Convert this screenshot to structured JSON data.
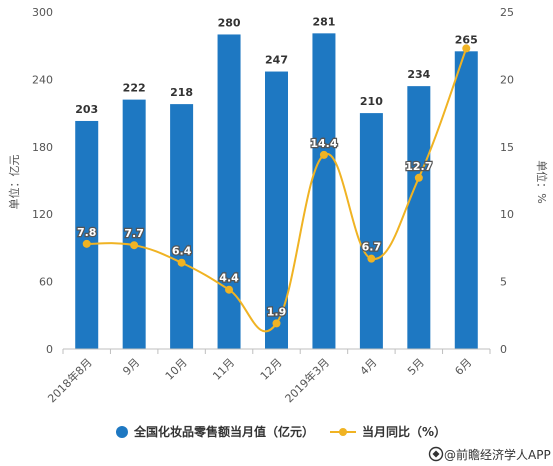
{
  "chart_data": {
    "type": "bar",
    "categories": [
      "2018年8月",
      "9月",
      "10月",
      "11月",
      "12月",
      "2019年3月",
      "4月",
      "5月",
      "6月"
    ],
    "series": [
      {
        "name": "全国化妆品零售额当月值（亿元）",
        "type": "bar",
        "axis": "left",
        "values": [
          203,
          222,
          218,
          280,
          247,
          281,
          210,
          234,
          265
        ]
      },
      {
        "name": "当月同比（%）",
        "type": "line",
        "axis": "right",
        "values": [
          7.8,
          7.7,
          6.4,
          4.4,
          1.9,
          14.4,
          6.7,
          12.7,
          22.3
        ],
        "labels": [
          "7.8",
          "7.7",
          "6.4",
          "4.4",
          "1.9",
          "14.4",
          "6.7",
          "12.7",
          ""
        ]
      }
    ],
    "ylabel_left": "单位：亿元",
    "ylabel_right": "单位：%",
    "ylim_left": [
      0,
      300
    ],
    "ylim_right": [
      0,
      25
    ],
    "yticks_left": [
      "0",
      "60",
      "120",
      "180",
      "240",
      "300"
    ],
    "yticks_right": [
      "0",
      "5",
      "10",
      "15",
      "20",
      "25"
    ],
    "grid": false,
    "legend_position": "bottom"
  },
  "colors": {
    "bar": "#1e78c2",
    "line": "#f0b323",
    "text": "#555555"
  },
  "source": {
    "icon": "qianzhan-logo-icon",
    "text": "@前瞻经济学人APP"
  }
}
